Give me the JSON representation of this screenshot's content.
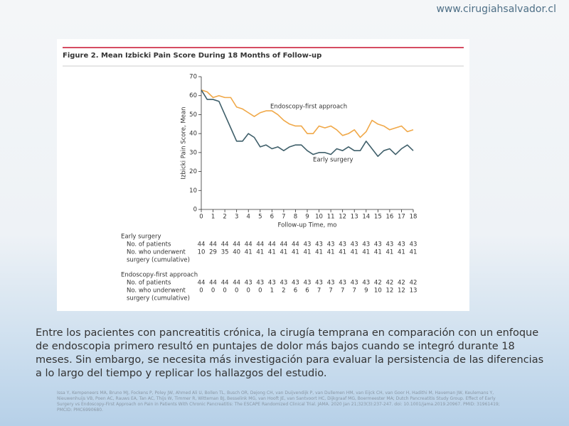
{
  "site": "www.cirugiahsalvador.cl",
  "chart_data": {
    "type": "line",
    "title": "Figure 2. Mean Izbicki Pain Score During 18 Months of Follow-up",
    "xlabel": "Follow-up Time, mo",
    "ylabel": "Izbicki Pain Score, Mean",
    "x": [
      0,
      0.5,
      1,
      1.5,
      2,
      2.5,
      3,
      3.5,
      4,
      4.5,
      5,
      5.5,
      6,
      6.5,
      7,
      7.5,
      8,
      8.5,
      9,
      9.5,
      10,
      10.5,
      11,
      11.5,
      12,
      12.5,
      13,
      13.5,
      14,
      14.5,
      15,
      15.5,
      16,
      16.5,
      17,
      17.5,
      18
    ],
    "xlim": [
      0,
      18
    ],
    "xticks": [
      0,
      1,
      2,
      3,
      4,
      5,
      6,
      7,
      8,
      9,
      10,
      11,
      12,
      13,
      14,
      15,
      16,
      17,
      18
    ],
    "ylim": [
      0,
      70
    ],
    "yticks": [
      0,
      10,
      20,
      30,
      40,
      50,
      60,
      70
    ],
    "series": [
      {
        "name": "Endoscopy-first approach",
        "color": "#f0a848",
        "values": [
          63,
          62,
          59,
          60,
          59,
          59,
          54,
          53,
          51,
          49,
          51,
          52,
          52,
          50,
          47,
          45,
          44,
          44,
          40,
          40,
          44,
          43,
          44,
          42,
          39,
          40,
          42,
          38,
          41,
          47,
          45,
          44,
          42,
          43,
          44,
          41,
          42
        ]
      },
      {
        "name": "Early surgery",
        "color": "#3f5f6a",
        "values": [
          63,
          58,
          58,
          57,
          50,
          43,
          36,
          36,
          40,
          38,
          33,
          34,
          32,
          33,
          31,
          33,
          34,
          34,
          31,
          29,
          30,
          30,
          29,
          32,
          31,
          33,
          31,
          31,
          36,
          32,
          28,
          31,
          32,
          29,
          32,
          34,
          31
        ]
      }
    ]
  },
  "patients_table": {
    "groups": [
      {
        "name": "Early surgery",
        "rows": [
          {
            "label": [
              "No. of patients"
            ],
            "values": [
              44,
              44,
              44,
              44,
              44,
              44,
              44,
              44,
              44,
              43,
              43,
              43,
              43,
              43,
              43,
              43,
              43,
              43,
              43
            ]
          },
          {
            "label": [
              "No. who underwent",
              "surgery (cumulative)"
            ],
            "values": [
              10,
              29,
              35,
              40,
              41,
              41,
              41,
              41,
              41,
              41,
              41,
              41,
              41,
              41,
              41,
              41,
              41,
              41,
              41
            ]
          }
        ]
      },
      {
        "name": "Endoscopy-first approach",
        "rows": [
          {
            "label": [
              "No. of patients"
            ],
            "values": [
              44,
              44,
              44,
              44,
              43,
              43,
              43,
              43,
              43,
              43,
              43,
              43,
              43,
              43,
              43,
              42,
              42,
              42,
              42
            ]
          },
          {
            "label": [
              "No. who underwent",
              "surgery (cumulative)"
            ],
            "values": [
              0,
              0,
              0,
              0,
              0,
              0,
              1,
              2,
              6,
              6,
              7,
              7,
              7,
              7,
              9,
              10,
              12,
              12,
              13
            ]
          }
        ]
      }
    ]
  },
  "summary": "Entre los pacientes con pancreatitis crónica, la cirugía temprana en comparación con un enfoque de endoscopia primero resultó en puntajes de dolor más bajos cuando se integró durante 18 meses. Sin embargo, se necesita más investigación para evaluar la persistencia de las diferencias a lo largo del tiempo y replicar los hallazgos del estudio.",
  "citation": "Issa Y, Kempeneers MA, Bruno MJ, Fockens P, Poley JW, Ahmed Ali U, Bollen TL, Busch OR, Dejong CH, van Duijvendijk P, van Dullemen HM, van Eijck CH, van Goor H, Hadithi M, Haveman JW, Keulemans Y, Nieuwenhuijs VB, Poen AC, Rauws EA, Tan AC, Thijs W, Timmer R, Witteman BJ, Besselink MG, van Hooft JE, van Santvoort HC, Dijkgraaf MG, Boermeester MA; Dutch Pancreatitis Study Group. Effect of Early Surgery vs Endoscopy-First Approach on Pain in Patients With Chronic Pancreatitis: The ESCAPE Randomized Clinical Trial. JAMA. 2020 Jan 21;323(3):237-247. doi: 10.1001/jama.2019.20967. PMID: 31961419; PMCID: PMC6990680."
}
